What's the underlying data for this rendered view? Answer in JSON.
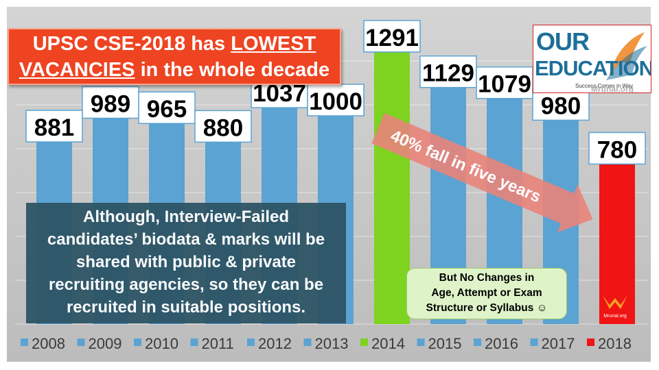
{
  "title": {
    "part1": "UPSC CSE-2018 has ",
    "lowest": "LOWEST",
    "vacancies": "VACANCIES",
    "part2": " in the whole decade"
  },
  "note": {
    "lines": [
      "Although, Interview-Failed",
      "candidates’ biodata & marks will be",
      "shared with public & private",
      "recruiting agencies, so they can be",
      "recruited in suitable positions."
    ]
  },
  "green_note": {
    "lines": [
      "But No Changes in",
      "Age, Attempt or Exam",
      "Structure or Syllabus ☺"
    ]
  },
  "arrow_label": "40% fall in five years",
  "logo": {
    "line1": "OUR",
    "line2": "EDUCATION",
    "tagline": "Success Comes in Way",
    "watermark": "Mrunal.org"
  },
  "small_logo_text": "Mrunal.org",
  "colors": {
    "blue": "#5ba3d2",
    "green": "#7ed321",
    "red": "#f01414",
    "title_bg": "#ee4422",
    "note_bg": "#2e5566",
    "arrow": "#e8847a"
  },
  "chart_data": {
    "type": "bar",
    "categories": [
      "2008",
      "2009",
      "2010",
      "2011",
      "2012",
      "2013",
      "2014",
      "2015",
      "2016",
      "2017",
      "2018"
    ],
    "values": [
      881,
      989,
      965,
      880,
      1037,
      1000,
      1291,
      1129,
      1079,
      980,
      780
    ],
    "bar_colors": [
      "blue",
      "blue",
      "blue",
      "blue",
      "blue",
      "blue",
      "green",
      "blue",
      "blue",
      "blue",
      "red"
    ],
    "ylim": [
      0,
      1300
    ],
    "grid": true,
    "legend": "bottom",
    "xlabel": "",
    "ylabel": ""
  }
}
